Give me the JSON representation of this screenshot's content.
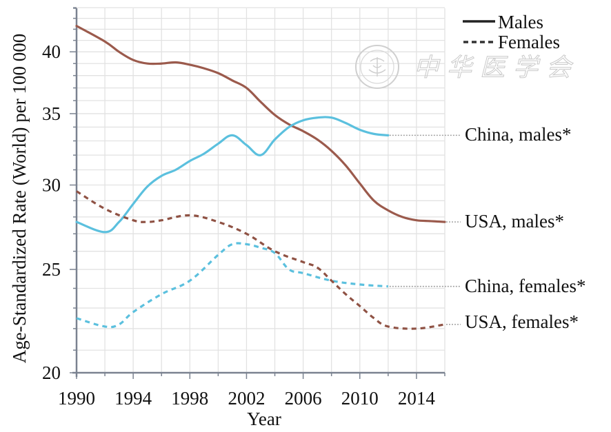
{
  "chart_data": {
    "type": "line",
    "title": "",
    "xlabel": "Year",
    "ylabel": "Age-Standardized Rate (World) per 100 000",
    "yscale": "log",
    "xlim": [
      1990,
      2016
    ],
    "ylim": [
      20,
      44
    ],
    "grid": true,
    "x_ticks": [
      1990,
      1994,
      1998,
      2002,
      2006,
      2010,
      2014
    ],
    "x_tick_labels": [
      "1990",
      "1994",
      "1998",
      "2002",
      "2006",
      "2010",
      "2014"
    ],
    "y_ticks": [
      20,
      25,
      30,
      35,
      40
    ],
    "y_tick_labels": [
      "20",
      "25",
      "30",
      "35",
      "40"
    ],
    "legend": {
      "position": "top-right",
      "entries": [
        {
          "label": "Males",
          "style": "solid"
        },
        {
          "label": "Females",
          "style": "dashed"
        }
      ]
    },
    "series": [
      {
        "name": "USA, males*",
        "label": "USA, males*",
        "color": "#9b5a4c",
        "style": "solid",
        "x": [
          1990,
          1992,
          1993,
          1994,
          1995,
          1996,
          1997,
          1998,
          1999,
          2000,
          2001,
          2002,
          2003,
          2004,
          2005,
          2006,
          2007,
          2008,
          2009,
          2010,
          2011,
          2012,
          2013,
          2014,
          2015,
          2016
        ],
        "values": [
          42.3,
          40.9,
          40.0,
          39.3,
          39.0,
          39.0,
          39.1,
          38.9,
          38.6,
          38.2,
          37.6,
          37.0,
          35.9,
          34.9,
          34.2,
          33.7,
          33.1,
          32.3,
          31.3,
          30.1,
          29.0,
          28.4,
          28.0,
          27.8,
          27.75,
          27.7
        ]
      },
      {
        "name": "China, males*",
        "label": "China, males*",
        "color": "#5bc0de",
        "style": "solid",
        "x": [
          1990,
          1992,
          1993,
          1994,
          1995,
          1996,
          1997,
          1998,
          1999,
          2000,
          2001,
          2002,
          2003,
          2004,
          2005,
          2006,
          2007,
          2008,
          2009,
          2010,
          2011,
          2012
        ],
        "values": [
          27.7,
          27.1,
          27.7,
          28.8,
          29.9,
          30.6,
          31.0,
          31.6,
          32.1,
          32.8,
          33.4,
          32.7,
          32.0,
          33.1,
          34.0,
          34.5,
          34.7,
          34.7,
          34.3,
          33.8,
          33.5,
          33.4
        ]
      },
      {
        "name": "China, females*",
        "label": "China, females*",
        "color": "#5bc0de",
        "style": "dashed",
        "x": [
          1990,
          1992,
          1993,
          1994,
          1996,
          1998,
          2000,
          2001,
          2002,
          2003,
          2004,
          2005,
          2006,
          2008,
          2010,
          2012
        ],
        "values": [
          22.5,
          22.1,
          22.2,
          22.8,
          23.7,
          24.4,
          25.8,
          26.4,
          26.4,
          26.2,
          25.9,
          25.0,
          24.8,
          24.4,
          24.2,
          24.1
        ]
      },
      {
        "name": "USA, females*",
        "label": "USA, females*",
        "color": "#8f5244",
        "style": "dashed",
        "x": [
          1990,
          1992,
          1994,
          1995,
          1996,
          1998,
          2000,
          2002,
          2004,
          2006,
          2007,
          2008,
          2009,
          2010,
          2011,
          2012,
          2014,
          2016
        ],
        "values": [
          29.6,
          28.5,
          27.8,
          27.7,
          27.8,
          28.1,
          27.7,
          27.0,
          26.0,
          25.4,
          25.1,
          24.4,
          23.7,
          23.1,
          22.5,
          22.1,
          22.0,
          22.2
        ]
      }
    ]
  },
  "watermark": {
    "text": "中华医学会",
    "icon": "seal-logo-icon"
  },
  "colors": {
    "axis": "#7a8290",
    "grid": "#e2e2e2",
    "leader": "#a0a0a0",
    "legend_line": "#222222"
  }
}
